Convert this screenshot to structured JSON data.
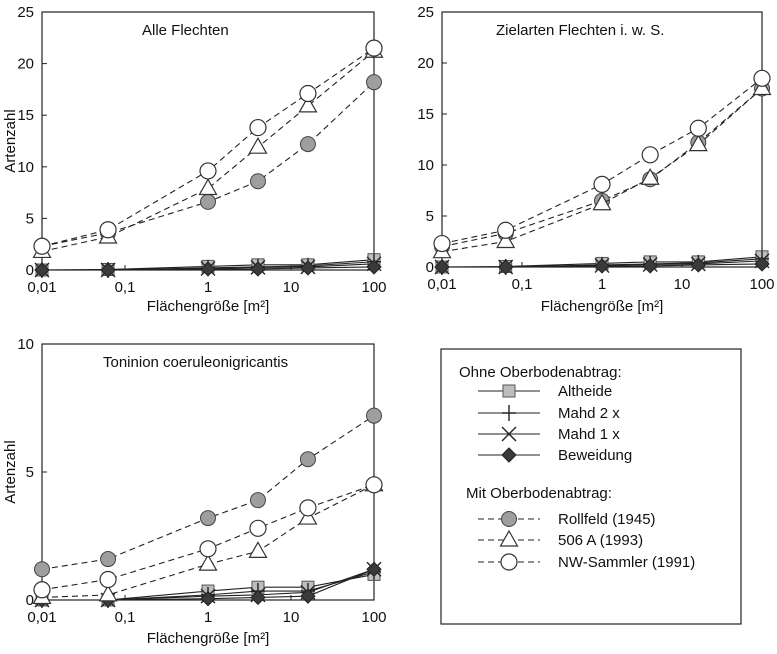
{
  "chart_data": [
    {
      "type": "line",
      "title": "Alle Flechten",
      "xlabel": "Flächengröße [m²]",
      "ylabel": "Artenzahl",
      "xscale": "log",
      "x": [
        0.01,
        0.0625,
        1,
        4,
        16,
        100
      ],
      "xticks": [
        0.01,
        0.1,
        1,
        10,
        100
      ],
      "xtick_labels": [
        "0,01",
        "0,1",
        "1",
        "10",
        "100"
      ],
      "ylim": [
        0,
        25
      ],
      "yticks": [
        0,
        5,
        10,
        15,
        20,
        25
      ],
      "series": [
        {
          "name": "Altheide",
          "values": [
            0,
            0.05,
            0.35,
            0.5,
            0.5,
            1.0
          ]
        },
        {
          "name": "Mahd 2 x",
          "values": [
            0,
            0,
            0.2,
            0.3,
            0.4,
            0.8
          ]
        },
        {
          "name": "Mahd 1 x",
          "values": [
            0,
            0,
            0.15,
            0.25,
            0.3,
            0.6
          ]
        },
        {
          "name": "Beweidung",
          "values": [
            0,
            0,
            0.1,
            0.1,
            0.2,
            0.3
          ]
        },
        {
          "name": "Rollfeld (1945)",
          "values": [
            2.3,
            3.6,
            6.6,
            8.6,
            12.2,
            18.2
          ]
        },
        {
          "name": "506 A (1993)",
          "values": [
            1.8,
            3.2,
            7.9,
            11.9,
            15.9,
            21.2
          ]
        },
        {
          "name": "NW-Sammler (1991)",
          "values": [
            2.3,
            3.9,
            9.6,
            13.8,
            17.1,
            21.5
          ]
        }
      ]
    },
    {
      "type": "line",
      "title": "Zielarten Flechten i. w. S.",
      "xlabel": "Flächengröße [m²]",
      "ylabel": "",
      "xscale": "log",
      "x": [
        0.01,
        0.0625,
        1,
        4,
        16,
        100
      ],
      "xticks": [
        0.01,
        0.1,
        1,
        10,
        100
      ],
      "xtick_labels": [
        "0,01",
        "0,1",
        "1",
        "10",
        "100"
      ],
      "ylim": [
        0,
        25
      ],
      "yticks": [
        0,
        5,
        10,
        15,
        20,
        25
      ],
      "series": [
        {
          "name": "Altheide",
          "values": [
            0,
            0.05,
            0.35,
            0.5,
            0.5,
            1.0
          ]
        },
        {
          "name": "Mahd 2 x",
          "values": [
            0,
            0,
            0.2,
            0.3,
            0.4,
            0.8
          ]
        },
        {
          "name": "Mahd 1 x",
          "values": [
            0,
            0,
            0.15,
            0.25,
            0.3,
            0.6
          ]
        },
        {
          "name": "Beweidung",
          "values": [
            0,
            0,
            0.1,
            0.1,
            0.2,
            0.3
          ]
        },
        {
          "name": "Rollfeld (1945)",
          "values": [
            2.0,
            3.3,
            6.5,
            8.6,
            12.2,
            17.5
          ]
        },
        {
          "name": "506 A (1993)",
          "values": [
            1.5,
            2.5,
            6.2,
            8.7,
            12.0,
            17.5
          ]
        },
        {
          "name": "NW-Sammler (1991)",
          "values": [
            2.3,
            3.6,
            8.1,
            11.0,
            13.6,
            18.5
          ]
        }
      ]
    },
    {
      "type": "line",
      "title": "Toninion coeruleonigricantis",
      "xlabel": "Flächengröße [m²]",
      "ylabel": "Artenzahl",
      "xscale": "log",
      "x": [
        0.01,
        0.0625,
        1,
        4,
        16,
        100
      ],
      "xticks": [
        0.01,
        0.1,
        1,
        10,
        100
      ],
      "xtick_labels": [
        "0,01",
        "0,1",
        "1",
        "10",
        "100"
      ],
      "ylim": [
        0,
        10
      ],
      "yticks": [
        0,
        5,
        10
      ],
      "series": [
        {
          "name": "Altheide",
          "values": [
            0,
            0,
            0.35,
            0.5,
            0.5,
            1.0
          ]
        },
        {
          "name": "Mahd 2 x",
          "values": [
            0,
            0,
            0.2,
            0.35,
            0.35,
            1.1
          ]
        },
        {
          "name": "Mahd 1 x",
          "values": [
            0,
            0,
            0.15,
            0.2,
            0.3,
            1.2
          ]
        },
        {
          "name": "Beweidung",
          "values": [
            0,
            0,
            0.05,
            0.1,
            0.15,
            1.2
          ]
        },
        {
          "name": "Rollfeld (1945)",
          "values": [
            1.2,
            1.6,
            3.2,
            3.9,
            5.5,
            7.2
          ]
        },
        {
          "name": "506 A (1993)",
          "values": [
            0.1,
            0.2,
            1.4,
            1.9,
            3.2,
            4.5
          ]
        },
        {
          "name": "NW-Sammler (1991)",
          "values": [
            0.4,
            0.8,
            2.0,
            2.8,
            3.6,
            4.5
          ]
        }
      ]
    }
  ],
  "legend": {
    "group1_title": "Ohne Oberbodenabtrag:",
    "group2_title": "Mit Oberbodenabtrag:",
    "items": [
      {
        "label": "Altheide",
        "marker": "square-icon"
      },
      {
        "label": "Mahd 2 x",
        "marker": "plus-icon"
      },
      {
        "label": "Mahd 1 x",
        "marker": "cross-icon"
      },
      {
        "label": "Beweidung",
        "marker": "diamond-icon"
      },
      {
        "label": "Rollfeld (1945)",
        "marker": "filled-circle-icon"
      },
      {
        "label": "506 A (1993)",
        "marker": "triangle-icon"
      },
      {
        "label": "NW-Sammler (1991)",
        "marker": "open-circle-icon"
      }
    ]
  },
  "colors": {
    "square_fill": "#bdbdbd",
    "circle_fill": "#9e9e9e",
    "diamond_fill": "#3a3a3a",
    "open_fill": "#ffffff",
    "line": "#222222"
  }
}
